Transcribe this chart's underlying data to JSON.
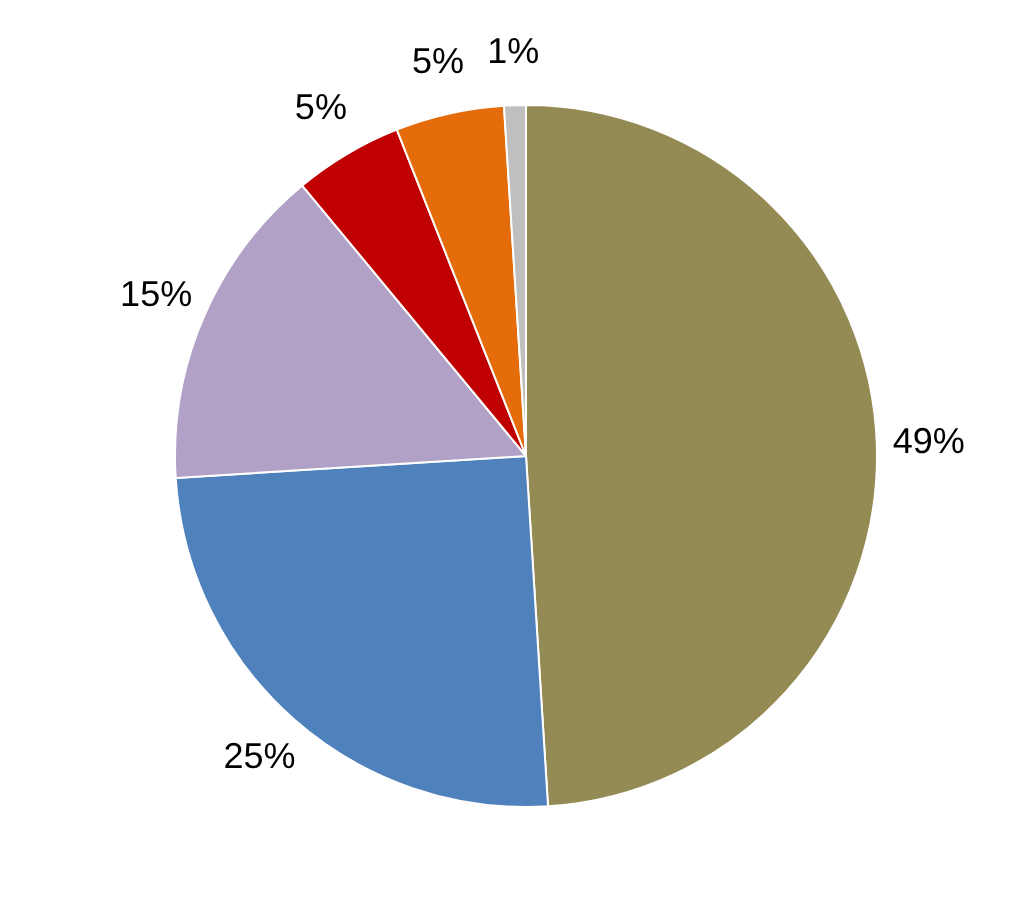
{
  "chart_data": {
    "type": "pie",
    "categories": [
      null,
      null,
      null,
      null,
      null,
      null
    ],
    "values": [
      49,
      25,
      15,
      5,
      5,
      1
    ],
    "colors": [
      "#948a54",
      "#4f81bd",
      "#b2a1c7",
      "#c00000",
      "#e46c0a",
      "#bfbfbf"
    ],
    "value_labels": [
      "49%",
      "25%",
      "15%",
      "5%",
      "5%",
      "1%"
    ],
    "legend": false
  }
}
